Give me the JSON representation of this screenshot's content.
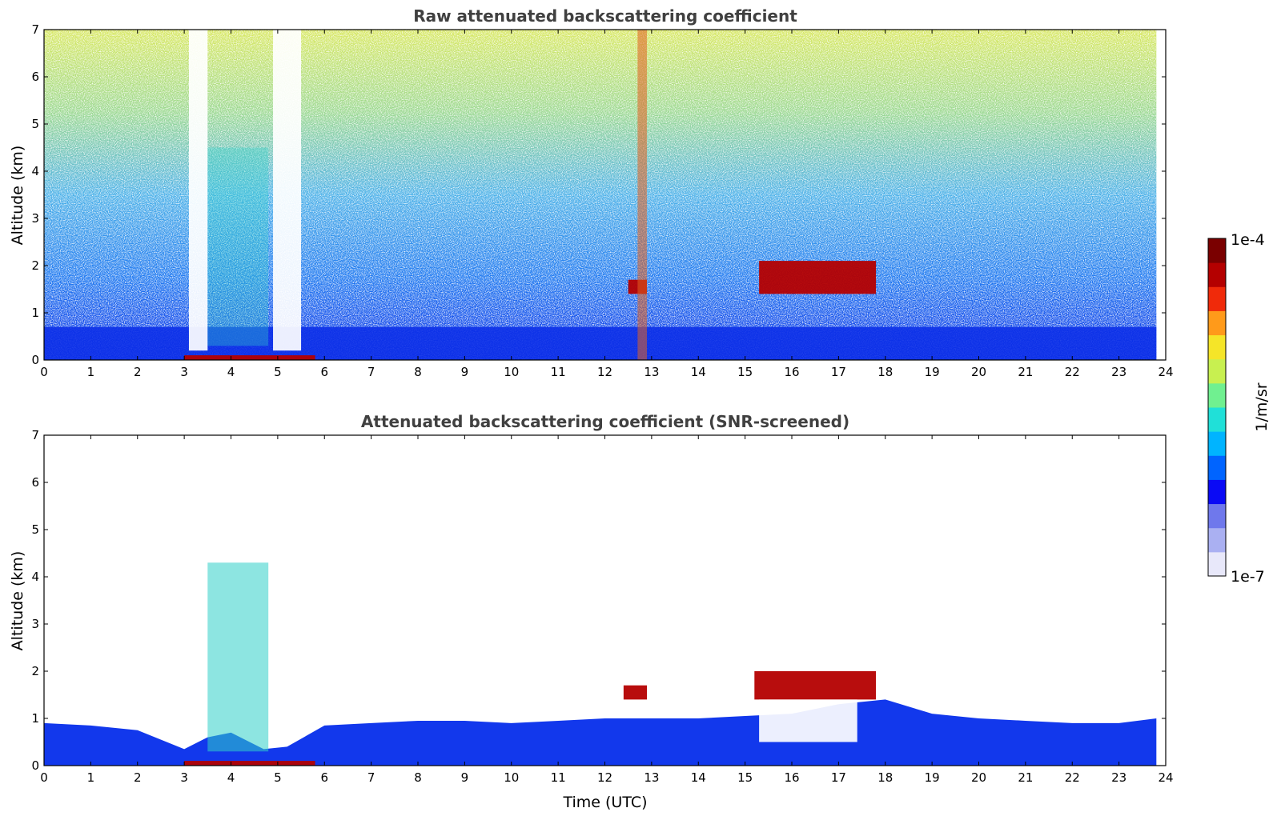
{
  "chart_data": [
    {
      "type": "heatmap",
      "title": "Raw attenuated backscattering coefficient",
      "xlabel": "",
      "ylabel": "Altitude (km)",
      "xlim": [
        0,
        24
      ],
      "ylim": [
        0,
        7
      ],
      "x_ticks": [
        "0",
        "1",
        "2",
        "3",
        "4",
        "5",
        "6",
        "7",
        "8",
        "9",
        "10",
        "11",
        "12",
        "13",
        "14",
        "15",
        "16",
        "17",
        "18",
        "19",
        "20",
        "21",
        "22",
        "23",
        "24"
      ],
      "y_ticks": [
        "0",
        "1",
        "2",
        "3",
        "4",
        "5",
        "6",
        "7"
      ],
      "data_time_range_utc": [
        0,
        23.8
      ],
      "features": [
        {
          "kind": "noise_background",
          "altitude_km": [
            1,
            7
          ],
          "level": "high",
          "note": "noisy returns increasing with altitude"
        },
        {
          "kind": "boundary_layer",
          "time_utc": [
            0,
            23.8
          ],
          "altitude_km": [
            0,
            0.7
          ],
          "level": "medium"
        },
        {
          "kind": "strong_layer",
          "time_utc": [
            3.0,
            5.8
          ],
          "altitude_km": [
            0,
            0.1
          ],
          "level": "very_high"
        },
        {
          "kind": "signal_gap",
          "time_utc": [
            3.1,
            3.5
          ],
          "altitude_km": [
            0.2,
            7
          ]
        },
        {
          "kind": "signal_gap",
          "time_utc": [
            4.9,
            5.5
          ],
          "altitude_km": [
            0.2,
            7
          ]
        },
        {
          "kind": "aerosol_plume",
          "time_utc": [
            3.5,
            4.8
          ],
          "altitude_km": [
            0.3,
            4.5
          ],
          "level": "medium"
        },
        {
          "kind": "cloud",
          "time_utc": [
            12.5,
            12.9
          ],
          "altitude_km": [
            1.4,
            1.7
          ],
          "level": "very_high"
        },
        {
          "kind": "cloud",
          "time_utc": [
            15.3,
            17.8
          ],
          "altitude_km": [
            1.4,
            2.1
          ],
          "level": "very_high"
        },
        {
          "kind": "vertical_streak",
          "time_utc": [
            12.7,
            12.9
          ],
          "altitude_km": [
            0,
            7
          ],
          "level": "high"
        }
      ]
    },
    {
      "type": "heatmap",
      "title": "Attenuated backscattering coefficient (SNR-screened)",
      "xlabel": "Time (UTC)",
      "ylabel": "Altitude (km)",
      "xlim": [
        0,
        24
      ],
      "ylim": [
        0,
        7
      ],
      "x_ticks": [
        "0",
        "1",
        "2",
        "3",
        "4",
        "5",
        "6",
        "7",
        "8",
        "9",
        "10",
        "11",
        "12",
        "13",
        "14",
        "15",
        "16",
        "17",
        "18",
        "19",
        "20",
        "21",
        "22",
        "23",
        "24"
      ],
      "y_ticks": [
        "0",
        "1",
        "2",
        "3",
        "4",
        "5",
        "6",
        "7"
      ],
      "data_time_range_utc": [
        0,
        23.8
      ],
      "boundary_layer_top_km": {
        "time_utc": [
          0,
          1,
          2,
          3,
          3.5,
          4,
          4.7,
          5.2,
          6,
          7,
          8,
          9,
          10,
          11,
          12,
          13,
          14,
          15,
          16,
          17,
          18,
          19,
          20,
          21,
          22,
          23,
          23.8
        ],
        "top_km": [
          0.9,
          0.85,
          0.75,
          0.35,
          0.6,
          0.7,
          0.35,
          0.4,
          0.85,
          0.9,
          0.95,
          0.95,
          0.9,
          0.95,
          1.0,
          1.0,
          1.0,
          1.05,
          1.1,
          1.3,
          1.4,
          1.1,
          1.0,
          0.95,
          0.9,
          0.9,
          1.0
        ]
      },
      "features": [
        {
          "kind": "strong_layer",
          "time_utc": [
            3.0,
            5.8
          ],
          "altitude_km": [
            0,
            0.1
          ],
          "level": "very_high"
        },
        {
          "kind": "aerosol_plume",
          "time_utc": [
            3.5,
            4.8
          ],
          "altitude_km": [
            0.3,
            4.3
          ],
          "level": "medium"
        },
        {
          "kind": "cloud",
          "time_utc": [
            12.4,
            12.9
          ],
          "altitude_km": [
            1.4,
            1.7
          ],
          "level": "very_high"
        },
        {
          "kind": "cloud",
          "time_utc": [
            15.2,
            17.8
          ],
          "altitude_km": [
            1.4,
            2.0
          ],
          "level": "very_high"
        },
        {
          "kind": "clear_region",
          "time_utc": [
            15.3,
            17.4
          ],
          "altitude_km": [
            0.5,
            1.4
          ]
        }
      ]
    }
  ],
  "colorbar": {
    "label": "1/m/sr",
    "max_label": "1e-4",
    "min_label": "1e-7",
    "scale": "log",
    "range": [
      1e-07,
      0.0001
    ],
    "colormap": [
      "#e8e8fa",
      "#aab0f2",
      "#6f78ec",
      "#0a0af5",
      "#0064ff",
      "#00b4ff",
      "#20e0d8",
      "#70f090",
      "#c8f050",
      "#f5e528",
      "#ff9a1a",
      "#f02a0a",
      "#b40000",
      "#7a0000"
    ]
  }
}
